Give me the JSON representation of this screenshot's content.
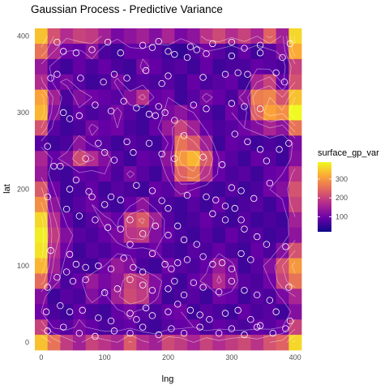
{
  "chart_data": {
    "type": "heatmap",
    "title": "Gaussian Process - Predictive Variance",
    "xlabel": "lng",
    "ylabel": "lat",
    "xlim": [
      -10,
      410
    ],
    "ylim": [
      -10,
      410
    ],
    "x_ticks": [
      0,
      100,
      200,
      300,
      400
    ],
    "y_ticks": [
      0,
      100,
      200,
      300,
      400
    ],
    "grid": true,
    "legend": {
      "title": "surface_gp_var",
      "position": "right",
      "range": [
        20,
        390
      ],
      "ticks": [
        100,
        200,
        300
      ],
      "colors": [
        "#0d0887",
        "#6a00a8",
        "#b12a90",
        "#e16462",
        "#fca636",
        "#f0f921"
      ]
    },
    "grid_cells": {
      "x_centers": [
        0,
        20,
        40,
        60,
        80,
        100,
        120,
        140,
        160,
        180,
        200,
        220,
        240,
        260,
        280,
        300,
        320,
        340,
        360,
        380,
        400
      ],
      "y_centers": [
        400,
        380,
        360,
        340,
        320,
        300,
        280,
        260,
        240,
        220,
        200,
        180,
        160,
        140,
        120,
        100,
        80,
        60,
        40,
        20,
        0
      ],
      "values": [
        [
          340,
          220,
          170,
          200,
          190,
          150,
          110,
          130,
          150,
          120,
          160,
          110,
          130,
          180,
          210,
          170,
          200,
          160,
          240,
          150,
          360
        ],
        [
          260,
          160,
          100,
          90,
          130,
          70,
          60,
          90,
          90,
          80,
          60,
          50,
          70,
          100,
          80,
          60,
          90,
          60,
          80,
          120,
          320
        ],
        [
          140,
          80,
          60,
          90,
          70,
          90,
          70,
          60,
          110,
          90,
          70,
          80,
          60,
          90,
          60,
          70,
          70,
          90,
          80,
          70,
          200
        ],
        [
          170,
          90,
          110,
          80,
          60,
          70,
          110,
          70,
          80,
          70,
          80,
          60,
          90,
          70,
          80,
          90,
          60,
          160,
          200,
          90,
          220
        ],
        [
          310,
          150,
          70,
          120,
          100,
          90,
          80,
          120,
          180,
          90,
          100,
          60,
          80,
          110,
          90,
          70,
          120,
          270,
          280,
          220,
          340
        ],
        [
          330,
          120,
          60,
          90,
          70,
          80,
          110,
          80,
          60,
          80,
          110,
          130,
          100,
          80,
          60,
          100,
          70,
          240,
          310,
          290,
          390
        ],
        [
          220,
          80,
          60,
          70,
          110,
          90,
          100,
          70,
          60,
          90,
          140,
          200,
          150,
          90,
          70,
          80,
          100,
          120,
          160,
          130,
          260
        ],
        [
          80,
          60,
          70,
          130,
          90,
          80,
          60,
          80,
          70,
          60,
          100,
          260,
          230,
          150,
          60,
          90,
          80,
          60,
          70,
          60,
          110
        ],
        [
          160,
          90,
          120,
          210,
          170,
          120,
          80,
          60,
          90,
          80,
          130,
          300,
          330,
          230,
          100,
          80,
          60,
          90,
          80,
          60,
          120
        ],
        [
          140,
          70,
          60,
          90,
          80,
          100,
          70,
          110,
          80,
          60,
          110,
          240,
          270,
          180,
          90,
          70,
          80,
          60,
          90,
          100,
          180
        ],
        [
          230,
          100,
          60,
          70,
          90,
          60,
          80,
          70,
          60,
          90,
          80,
          120,
          100,
          70,
          60,
          80,
          60,
          70,
          100,
          120,
          220
        ],
        [
          290,
          130,
          60,
          80,
          100,
          70,
          60,
          90,
          130,
          80,
          70,
          60,
          80,
          60,
          90,
          60,
          70,
          80,
          60,
          90,
          200
        ],
        [
          360,
          170,
          90,
          60,
          80,
          110,
          90,
          200,
          230,
          150,
          80,
          60,
          70,
          90,
          70,
          60,
          80,
          60,
          70,
          60,
          150
        ],
        [
          380,
          190,
          120,
          80,
          70,
          90,
          110,
          180,
          190,
          120,
          90,
          70,
          60,
          80,
          60,
          90,
          70,
          80,
          60,
          70,
          130
        ],
        [
          370,
          170,
          100,
          60,
          80,
          70,
          90,
          90,
          80,
          100,
          70,
          60,
          80,
          70,
          90,
          70,
          60,
          90,
          70,
          120,
          220
        ],
        [
          330,
          150,
          80,
          70,
          60,
          100,
          140,
          120,
          70,
          60,
          100,
          80,
          70,
          90,
          140,
          110,
          60,
          80,
          120,
          220,
          300
        ],
        [
          250,
          120,
          70,
          90,
          140,
          110,
          130,
          200,
          180,
          120,
          80,
          60,
          90,
          110,
          170,
          120,
          80,
          70,
          100,
          200,
          260
        ],
        [
          120,
          60,
          80,
          70,
          120,
          90,
          150,
          210,
          190,
          110,
          60,
          70,
          80,
          60,
          100,
          90,
          60,
          80,
          70,
          110,
          160
        ],
        [
          100,
          70,
          60,
          90,
          70,
          60,
          90,
          110,
          80,
          70,
          90,
          100,
          60,
          80,
          70,
          60,
          90,
          70,
          80,
          60,
          120
        ],
        [
          200,
          90,
          80,
          110,
          90,
          70,
          80,
          90,
          70,
          60,
          80,
          90,
          100,
          70,
          90,
          80,
          70,
          90,
          80,
          100,
          200
        ],
        [
          340,
          260,
          190,
          150,
          200,
          180,
          160,
          230,
          170,
          150,
          210,
          190,
          160,
          200,
          170,
          190,
          210,
          180,
          220,
          240,
          360
        ]
      ]
    },
    "points": [
      [
        25,
        392
      ],
      [
        105,
        392
      ],
      [
        160,
        388
      ],
      [
        175,
        385
      ],
      [
        185,
        393
      ],
      [
        200,
        380
      ],
      [
        235,
        386
      ],
      [
        245,
        382
      ],
      [
        270,
        390
      ],
      [
        300,
        392
      ],
      [
        320,
        384
      ],
      [
        345,
        388
      ],
      [
        392,
        390
      ],
      [
        35,
        380
      ],
      [
        55,
        378
      ],
      [
        80,
        382
      ],
      [
        125,
        378
      ],
      [
        210,
        376
      ],
      [
        230,
        372
      ],
      [
        260,
        377
      ],
      [
        300,
        374
      ],
      [
        345,
        378
      ],
      [
        380,
        372
      ],
      [
        15,
        345
      ],
      [
        25,
        350
      ],
      [
        62,
        345
      ],
      [
        98,
        340
      ],
      [
        115,
        350
      ],
      [
        135,
        345
      ],
      [
        165,
        355
      ],
      [
        190,
        338
      ],
      [
        200,
        348
      ],
      [
        255,
        346
      ],
      [
        290,
        350
      ],
      [
        310,
        352
      ],
      [
        325,
        350
      ],
      [
        370,
        352
      ],
      [
        383,
        340
      ],
      [
        35,
        300
      ],
      [
        45,
        292
      ],
      [
        60,
        296
      ],
      [
        85,
        310
      ],
      [
        110,
        302
      ],
      [
        130,
        315
      ],
      [
        150,
        306
      ],
      [
        170,
        298
      ],
      [
        180,
        296
      ],
      [
        185,
        308
      ],
      [
        195,
        300
      ],
      [
        210,
        290
      ],
      [
        240,
        310
      ],
      [
        260,
        305
      ],
      [
        300,
        312
      ],
      [
        320,
        308
      ],
      [
        345,
        305
      ],
      [
        10,
        256
      ],
      [
        30,
        230
      ],
      [
        45,
        200
      ],
      [
        70,
        240
      ],
      [
        90,
        260
      ],
      [
        100,
        248
      ],
      [
        115,
        238
      ],
      [
        135,
        262
      ],
      [
        145,
        248
      ],
      [
        170,
        260
      ],
      [
        190,
        246
      ],
      [
        210,
        240
      ],
      [
        225,
        270
      ],
      [
        255,
        242
      ],
      [
        285,
        232
      ],
      [
        305,
        272
      ],
      [
        325,
        262
      ],
      [
        345,
        252
      ],
      [
        355,
        237
      ],
      [
        375,
        252
      ],
      [
        390,
        260
      ],
      [
        20,
        230
      ],
      [
        55,
        212
      ],
      [
        75,
        197
      ],
      [
        80,
        190
      ],
      [
        100,
        180
      ],
      [
        110,
        190
      ],
      [
        125,
        186
      ],
      [
        140,
        160
      ],
      [
        150,
        205
      ],
      [
        175,
        198
      ],
      [
        190,
        185
      ],
      [
        200,
        175
      ],
      [
        230,
        192
      ],
      [
        260,
        190
      ],
      [
        275,
        186
      ],
      [
        290,
        178
      ],
      [
        300,
        202
      ],
      [
        315,
        198
      ],
      [
        335,
        188
      ],
      [
        360,
        208
      ],
      [
        10,
        190
      ],
      [
        40,
        174
      ],
      [
        60,
        165
      ],
      [
        85,
        160
      ],
      [
        105,
        150
      ],
      [
        125,
        148
      ],
      [
        140,
        128
      ],
      [
        160,
        142
      ],
      [
        180,
        152
      ],
      [
        200,
        140
      ],
      [
        215,
        152
      ],
      [
        225,
        134
      ],
      [
        245,
        128
      ],
      [
        270,
        168
      ],
      [
        290,
        160
      ],
      [
        305,
        175
      ],
      [
        315,
        160
      ],
      [
        320,
        148
      ],
      [
        340,
        138
      ],
      [
        355,
        128
      ],
      [
        385,
        125
      ],
      [
        15,
        120
      ],
      [
        45,
        115
      ],
      [
        55,
        102
      ],
      [
        70,
        98
      ],
      [
        90,
        100
      ],
      [
        110,
        96
      ],
      [
        130,
        110
      ],
      [
        145,
        98
      ],
      [
        160,
        92
      ],
      [
        175,
        116
      ],
      [
        195,
        102
      ],
      [
        205,
        96
      ],
      [
        215,
        104
      ],
      [
        230,
        108
      ],
      [
        255,
        112
      ],
      [
        270,
        102
      ],
      [
        285,
        104
      ],
      [
        300,
        96
      ],
      [
        315,
        116
      ],
      [
        330,
        108
      ],
      [
        10,
        72
      ],
      [
        25,
        85
      ],
      [
        40,
        92
      ],
      [
        50,
        80
      ],
      [
        70,
        82
      ],
      [
        100,
        65
      ],
      [
        120,
        70
      ],
      [
        140,
        82
      ],
      [
        160,
        75
      ],
      [
        175,
        68
      ],
      [
        200,
        70
      ],
      [
        210,
        80
      ],
      [
        225,
        62
      ],
      [
        240,
        78
      ],
      [
        255,
        72
      ],
      [
        280,
        66
      ],
      [
        300,
        80
      ],
      [
        320,
        68
      ],
      [
        340,
        62
      ],
      [
        360,
        55
      ],
      [
        390,
        72
      ],
      [
        8,
        40
      ],
      [
        30,
        48
      ],
      [
        45,
        40
      ],
      [
        65,
        42
      ],
      [
        90,
        32
      ],
      [
        110,
        28
      ],
      [
        140,
        38
      ],
      [
        150,
        30
      ],
      [
        165,
        45
      ],
      [
        175,
        35
      ],
      [
        200,
        40
      ],
      [
        215,
        50
      ],
      [
        235,
        42
      ],
      [
        250,
        36
      ],
      [
        265,
        30
      ],
      [
        290,
        38
      ],
      [
        310,
        42
      ],
      [
        330,
        30
      ],
      [
        345,
        22
      ],
      [
        370,
        40
      ],
      [
        392,
        28
      ],
      [
        10,
        15
      ],
      [
        35,
        20
      ],
      [
        60,
        12
      ],
      [
        85,
        8
      ],
      [
        115,
        15
      ],
      [
        140,
        12
      ],
      [
        160,
        20
      ],
      [
        185,
        10
      ],
      [
        205,
        18
      ],
      [
        225,
        12
      ],
      [
        250,
        20
      ],
      [
        280,
        12
      ],
      [
        300,
        18
      ],
      [
        320,
        10
      ],
      [
        340,
        20
      ],
      [
        365,
        12
      ],
      [
        385,
        18
      ]
    ]
  }
}
